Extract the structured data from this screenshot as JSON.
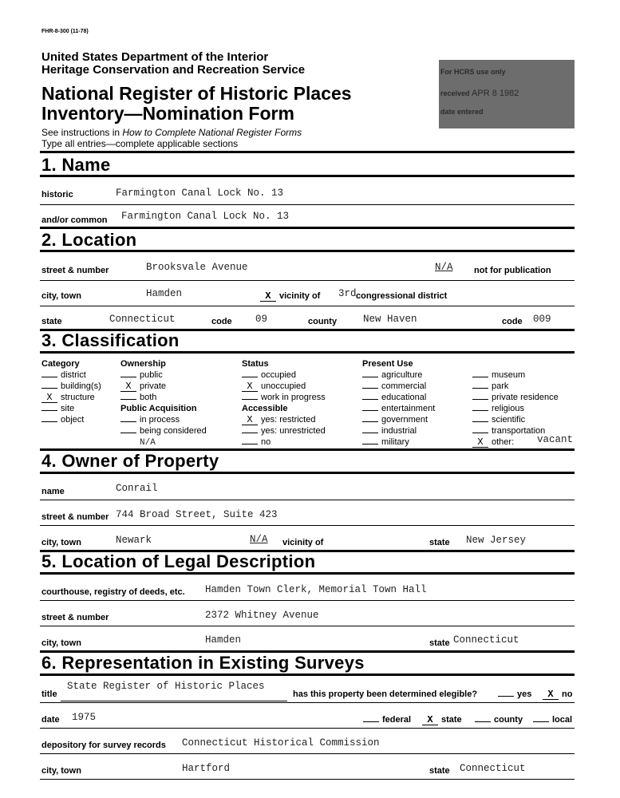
{
  "form_id": "FHR-8-300  (11-78)",
  "agency": [
    "United States Department of the Interior",
    "Heritage Conservation and Recreation Service"
  ],
  "title": [
    "National Register of Historic Places",
    "Inventory—Nomination Form"
  ],
  "instructions": {
    "prefix": "See instructions in ",
    "italic": "How to Complete National Register Forms",
    "line2": "Type all entries—complete applicable sections"
  },
  "stamp": {
    "line1": "For HCRS use only",
    "received_label": "received",
    "received_value": "APR 8  1982",
    "date_entered_label": "date entered"
  },
  "s1": {
    "heading": "1.  Name",
    "historic_label": "historic",
    "historic": "Farmington Canal Lock No. 13",
    "common_label": "and/or common",
    "common": "Farmington Canal Lock No. 13"
  },
  "s2": {
    "heading": "2.  Location",
    "street_label": "street & number",
    "street": "Brooksvale Avenue",
    "nfp_value": "N/A",
    "nfp_label": "not for publication",
    "city_label": "city, town",
    "city": "Hamden",
    "vicinity_mark": "X",
    "vicinity_label": "vicinity of",
    "district_value": "3rd",
    "district_label": "congressional district",
    "state_label": "state",
    "state": "Connecticut",
    "code_label": "code",
    "state_code": "09",
    "county_label": "county",
    "county": "New Haven",
    "county_code_label": "code",
    "county_code": "009"
  },
  "s3": {
    "heading": "3.  Classification",
    "category": {
      "title": "Category",
      "items": [
        {
          "mark": "",
          "label": "district"
        },
        {
          "mark": "",
          "label": "building(s)"
        },
        {
          "mark": "X",
          "label": "structure"
        },
        {
          "mark": "",
          "label": "site"
        },
        {
          "mark": "",
          "label": "object"
        }
      ]
    },
    "ownership": {
      "title": "Ownership",
      "items": [
        {
          "mark": "",
          "label": "public"
        },
        {
          "mark": "X",
          "label": "private"
        },
        {
          "mark": "",
          "label": "both"
        }
      ]
    },
    "acquisition": {
      "title": "Public Acquisition",
      "items": [
        {
          "mark": "",
          "label": "in process"
        },
        {
          "mark": "",
          "label": "being considered"
        }
      ],
      "note": "N/A"
    },
    "status": {
      "title": "Status",
      "items": [
        {
          "mark": "",
          "label": "occupied"
        },
        {
          "mark": "X",
          "label": "unoccupied"
        },
        {
          "mark": "",
          "label": "work in progress"
        }
      ]
    },
    "accessible": {
      "title": "Accessible",
      "items": [
        {
          "mark": "X",
          "label": "yes: restricted"
        },
        {
          "mark": "",
          "label": "yes: unrestricted"
        },
        {
          "mark": "",
          "label": "no"
        }
      ]
    },
    "present_use": {
      "title": "Present Use",
      "col1": [
        {
          "mark": "",
          "label": "agriculture"
        },
        {
          "mark": "",
          "label": "commercial"
        },
        {
          "mark": "",
          "label": "educational"
        },
        {
          "mark": "",
          "label": "entertainment"
        },
        {
          "mark": "",
          "label": "government"
        },
        {
          "mark": "",
          "label": "industrial"
        },
        {
          "mark": "",
          "label": "military"
        }
      ],
      "col2": [
        {
          "mark": "",
          "label": "museum"
        },
        {
          "mark": "",
          "label": "park"
        },
        {
          "mark": "",
          "label": "private residence"
        },
        {
          "mark": "",
          "label": "religious"
        },
        {
          "mark": "",
          "label": "scientific"
        },
        {
          "mark": "",
          "label": "transportation"
        },
        {
          "mark": "X",
          "label": "other:"
        }
      ],
      "other_value": "vacant"
    }
  },
  "s4": {
    "heading": "4.  Owner of Property",
    "name_label": "name",
    "name": "Conrail",
    "street_label": "street & number",
    "street": "744 Broad Street, Suite 423",
    "city_label": "city, town",
    "city": "Newark",
    "vicinity_value": "N/A",
    "vicinity_label": "vicinity of",
    "state_label": "state",
    "state": "New Jersey"
  },
  "s5": {
    "heading": "5.  Location of Legal Description",
    "courthouse_label": "courthouse, registry of deeds, etc.",
    "courthouse": "Hamden Town Clerk, Memorial Town Hall",
    "street_label": "street & number",
    "street": "2372 Whitney Avenue",
    "city_label": "city, town",
    "city": "Hamden",
    "state_label": "state",
    "state": "Connecticut"
  },
  "s6": {
    "heading": "6.  Representation in Existing Surveys",
    "title_label": "title",
    "title": "State Register of Historic Places",
    "determined_label": "has this property been determined elegible?",
    "yes_mark": "",
    "yes_label": "yes",
    "no_mark": "X",
    "no_label": "no",
    "date_label": "date",
    "date": "1975",
    "federal_mark": "",
    "federal_label": "federal",
    "state_mark": "X",
    "state_label": "state",
    "county_mark": "",
    "county_label": "county",
    "local_mark": "",
    "local_label": "local",
    "depository_label": "depository for survey records",
    "depository": "Connecticut Historical Commission",
    "city_label": "city, town",
    "city": "Hartford",
    "state2_label": "state",
    "state2": "Connecticut"
  }
}
